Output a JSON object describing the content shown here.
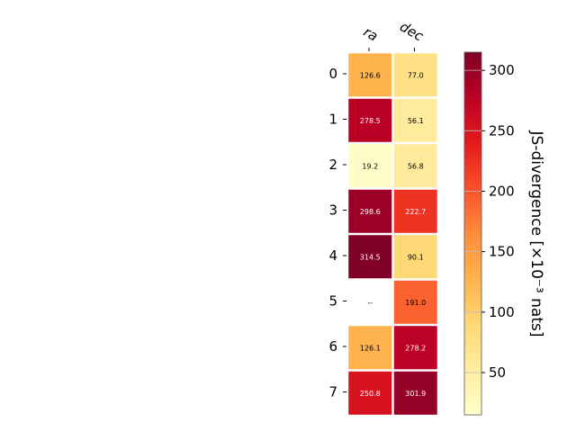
{
  "chart_data": {
    "type": "heatmap",
    "columns": [
      "ra",
      "dec"
    ],
    "rows": [
      "0",
      "1",
      "2",
      "3",
      "4",
      "5",
      "6",
      "7"
    ],
    "values": [
      [
        126.6,
        77.0
      ],
      [
        278.5,
        56.1
      ],
      [
        19.2,
        56.8
      ],
      [
        298.6,
        222.7
      ],
      [
        314.5,
        90.1
      ],
      [
        null,
        191.0
      ],
      [
        126.1,
        278.2
      ],
      [
        250.8,
        301.9
      ]
    ],
    "cell_labels": [
      [
        "126.6",
        "77.0"
      ],
      [
        "278.5",
        "56.1"
      ],
      [
        "19.2",
        "56.8"
      ],
      [
        "298.6",
        "222.7"
      ],
      [
        "314.5",
        "90.1"
      ],
      [
        "--",
        "191.0"
      ],
      [
        "126.1",
        "278.2"
      ],
      [
        "250.8",
        "301.9"
      ]
    ],
    "colormap": "YlOrRd",
    "colorbar": {
      "label": "JS-divergence [×10⁻³ nats]",
      "range": [
        15,
        315
      ],
      "ticks": [
        50,
        100,
        150,
        200,
        250,
        300
      ]
    },
    "colors": {
      "low": "#ffffcc",
      "high": "#800026",
      "missing": "#ffffff"
    }
  }
}
